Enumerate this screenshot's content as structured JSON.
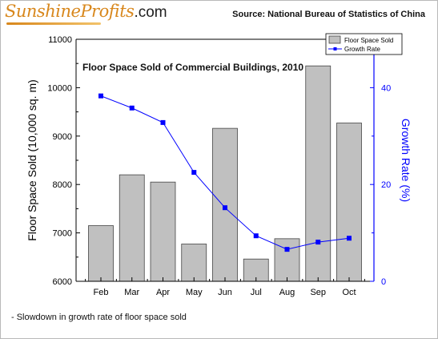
{
  "branding": {
    "logo_text": "SunshineProfits",
    "logo_suffix": ".com",
    "source": "Source: National Bureau of Statistics of China"
  },
  "footnote": "- Slowdown in growth rate of floor space sold",
  "colors": {
    "bar_fill": "#c0c0c0",
    "bar_stroke": "#444444",
    "line": "#0000ff",
    "right_axis": "#0000ff",
    "logo": "#d8871c"
  },
  "chart_data": {
    "type": "bar",
    "title": "Floor Space Sold of Commercial Buildings, 2010",
    "categories": [
      "Feb",
      "Mar",
      "Apr",
      "May",
      "Jun",
      "Jul",
      "Aug",
      "Sep",
      "Oct"
    ],
    "series": [
      {
        "name": "Floor Space Sold",
        "type": "bar",
        "axis": "left",
        "values": [
          7150,
          8200,
          8050,
          6770,
          9160,
          6460,
          6880,
          10450,
          9270
        ]
      },
      {
        "name": "Growth Rate",
        "type": "line",
        "axis": "right",
        "values": [
          38.3,
          35.8,
          32.8,
          22.5,
          15.2,
          9.4,
          6.6,
          8.1,
          8.9
        ]
      }
    ],
    "ylabel": "Floor Space Sold (10,000 sq. m)",
    "ylim": [
      6000,
      11000
    ],
    "yticks": [
      6000,
      7000,
      8000,
      9000,
      10000,
      11000
    ],
    "y2label": "Growth Rate (%)",
    "y2lim": [
      0,
      50
    ],
    "y2ticks": [
      0,
      20,
      40
    ],
    "legend": "top-right",
    "grid": false
  }
}
